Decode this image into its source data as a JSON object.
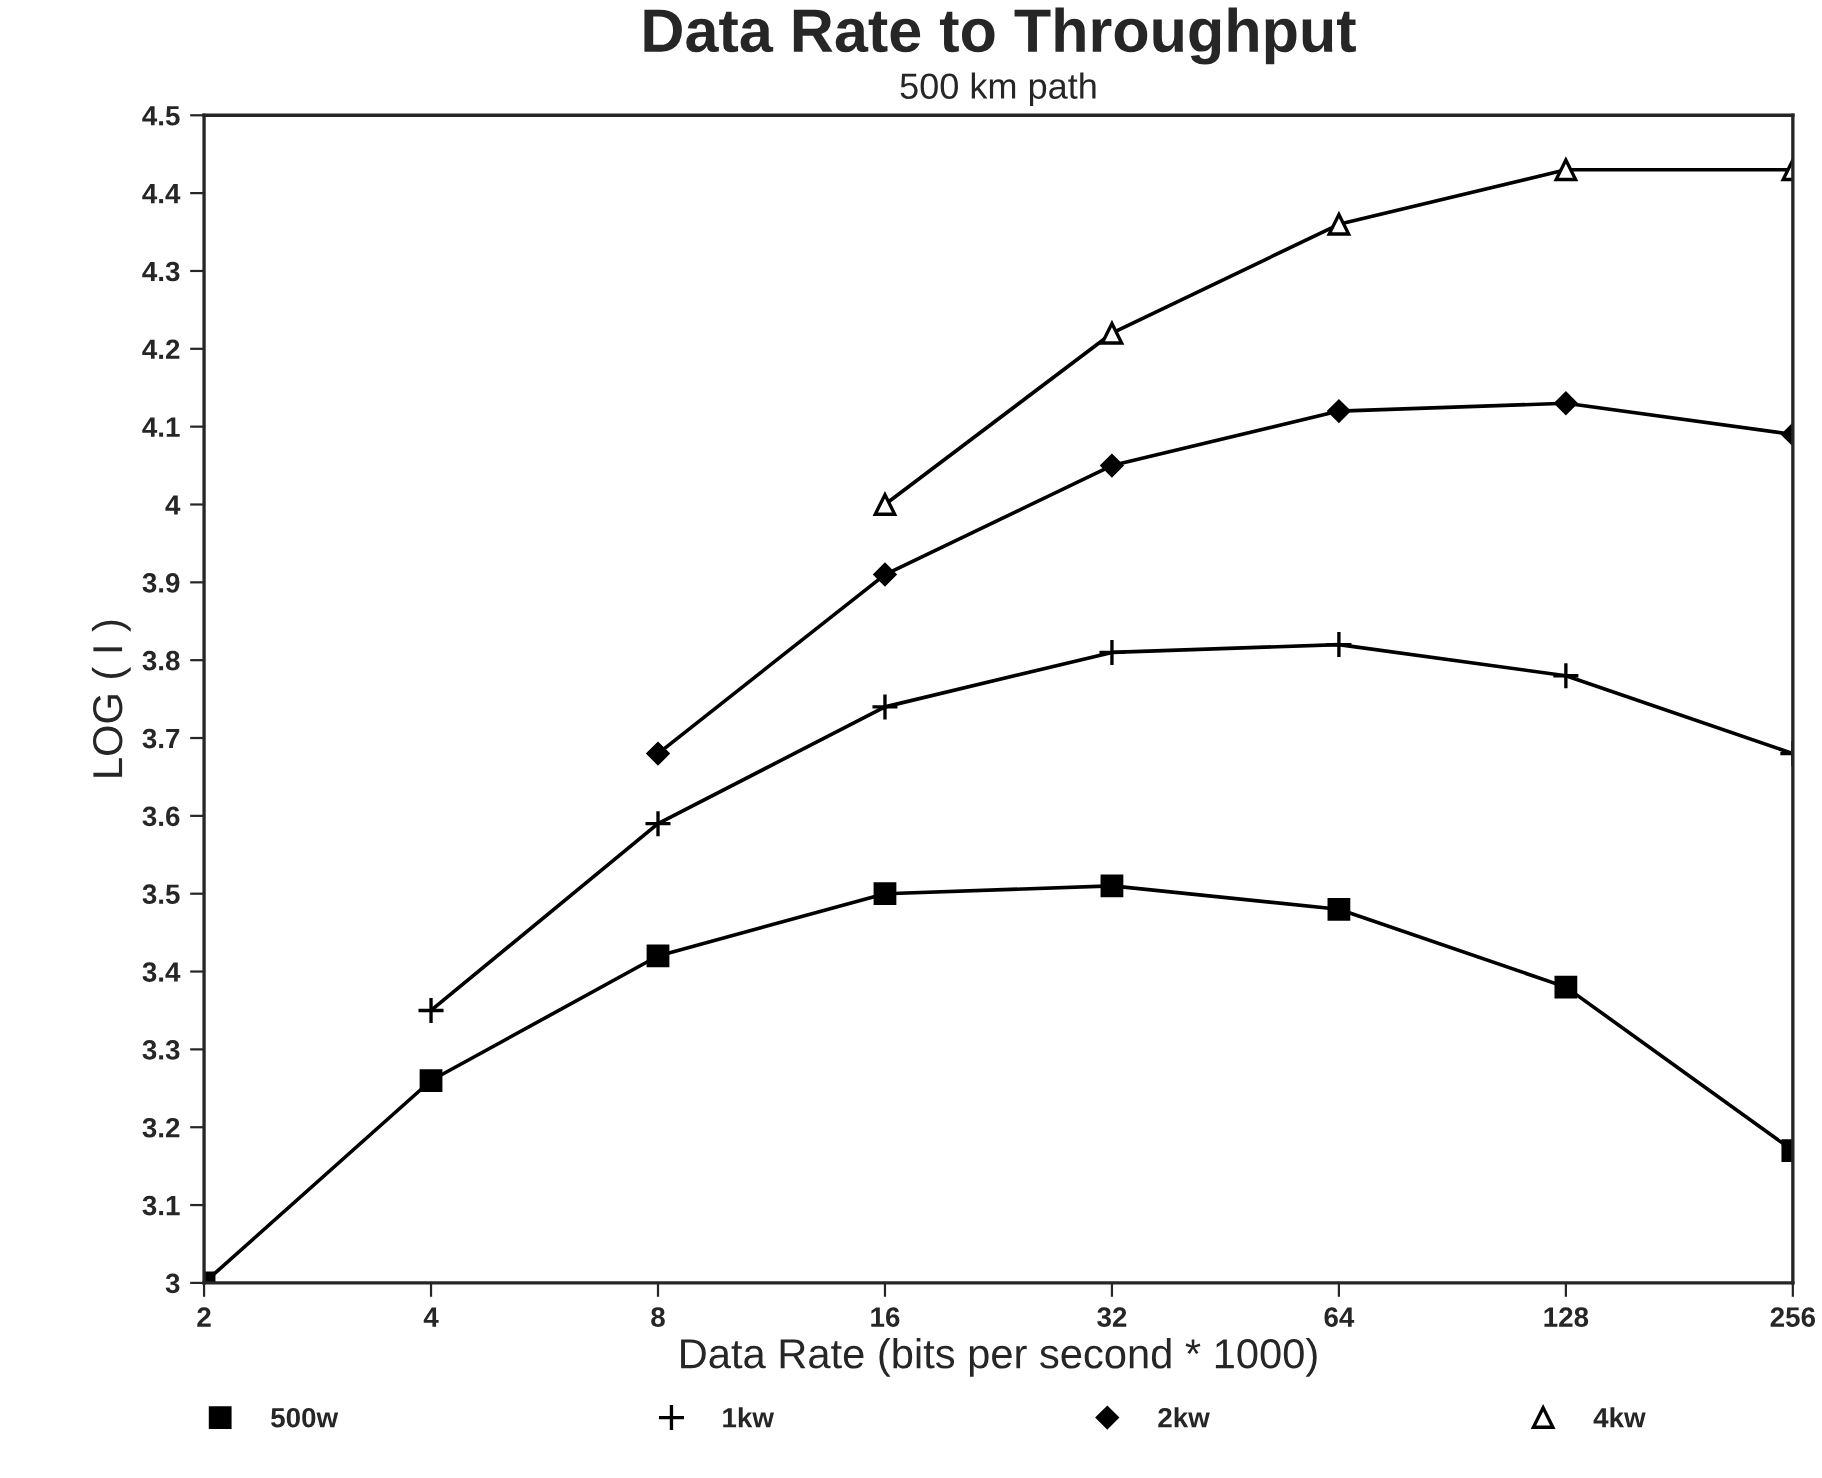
{
  "chart_data": {
    "type": "line",
    "title": "Data Rate to Throughput",
    "subtitle": "500 km path",
    "xlabel": "Data Rate (bits per second * 1000)",
    "ylabel": "LOG ( I )",
    "categories": [
      "2",
      "4",
      "8",
      "16",
      "32",
      "64",
      "128",
      "256"
    ],
    "series": [
      {
        "name": "500w",
        "color": "#000000",
        "marker": "square",
        "values": [
          3.0,
          3.26,
          3.42,
          3.5,
          3.51,
          3.48,
          3.38,
          3.17
        ]
      },
      {
        "name": "1kw",
        "color": "#000000",
        "marker": "cross",
        "values": [
          null,
          3.35,
          3.59,
          3.74,
          3.81,
          3.82,
          3.78,
          3.68
        ]
      },
      {
        "name": "2kw",
        "color": "#000000",
        "marker": "diamond",
        "values": [
          null,
          null,
          3.68,
          3.91,
          4.05,
          4.12,
          4.13,
          4.09
        ]
      },
      {
        "name": "4kw",
        "color": "#000000",
        "marker": "triangle",
        "values": [
          null,
          null,
          null,
          4.0,
          4.22,
          4.36,
          4.43,
          4.43
        ]
      }
    ],
    "ylim": [
      3,
      4.5
    ],
    "yticks": [
      3,
      3.1,
      3.2,
      3.3,
      3.4,
      3.5,
      3.6,
      3.7,
      3.8,
      3.9,
      4,
      4.1,
      4.2,
      4.3,
      4.4,
      4.5
    ],
    "grid": false,
    "legend": "bottom",
    "line_style": "solid"
  }
}
